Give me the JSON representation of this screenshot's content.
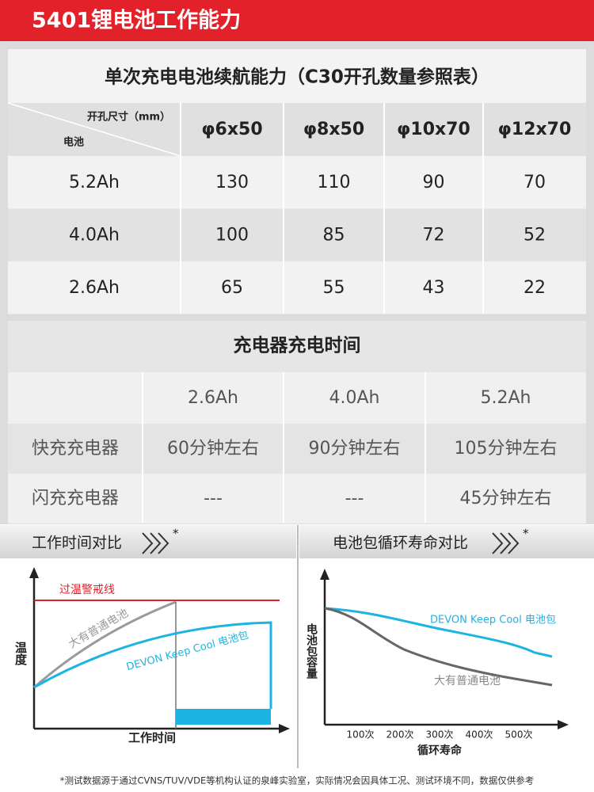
{
  "header": {
    "title": "5401锂电池工作能力"
  },
  "runtime_table": {
    "title": "单次充电电池续航能力（C30开孔数量参照表）",
    "corner_top": "开孔尺寸（mm）",
    "corner_bottom": "电池",
    "columns": [
      "φ6x50",
      "φ8x50",
      "φ10x70",
      "φ12x70"
    ],
    "rows": [
      [
        "5.2Ah",
        130,
        110,
        90,
        70
      ],
      [
        "4.0Ah",
        100,
        85,
        72,
        52
      ],
      [
        "2.6Ah",
        65,
        55,
        43,
        22
      ]
    ]
  },
  "charge_table": {
    "title": "充电器充电时间",
    "columns": [
      "2.6Ah",
      "4.0Ah",
      "5.2Ah"
    ],
    "rows": [
      [
        "快充充电器",
        "60分钟左右",
        "90分钟左右",
        "105分钟左右"
      ],
      [
        "闪充充电器",
        "---",
        "---",
        "45分钟左右"
      ]
    ]
  },
  "temp_chart": {
    "title": "工作时间对比",
    "marker": "*",
    "warning_label": "过温警戒线",
    "y_label": "温度",
    "x_label": "工作时间",
    "series": [
      "大有普通电池",
      "DEVON Keep Cool 电池包"
    ]
  },
  "cycle_chart": {
    "title": "电池包循环寿命对比",
    "marker": "*",
    "y_label": "电池包容量",
    "x_label": "循环寿命",
    "xticks": [
      "100次",
      "200次",
      "300次",
      "400次",
      "500次"
    ],
    "series": [
      "DEVON Keep Cool  电池包",
      "大有普通电池"
    ]
  },
  "footnote": "*测试数据源于通过CVNS/TUV/VDE等机构认证的泉峰实验室，实际情况会因具体工况、测试环境不同，数据仅供参考"
}
